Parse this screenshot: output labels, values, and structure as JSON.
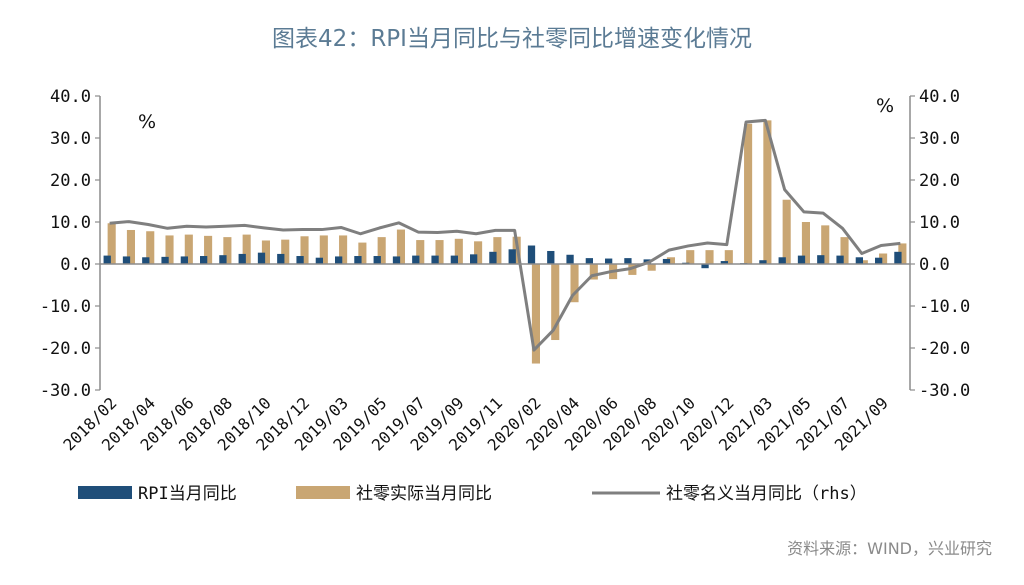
{
  "title": "图表42：RPI当月同比与社零同比增速变化情况",
  "source": "资料来源：WIND，兴业研究",
  "colors": {
    "rpi": "#1f4e79",
    "retail_real": "#c9a673",
    "retail_nominal": "#7f7f7f",
    "title": "#5b7b94",
    "axis": "#8c8c8c"
  },
  "chart_data": {
    "type": "bar",
    "left_axis": {
      "unit": "%",
      "ylim": [
        -30,
        40
      ],
      "ticks": [
        "40.0",
        "30.0",
        "20.0",
        "10.0",
        "0.0",
        "-10.0",
        "-20.0",
        "-30.0"
      ]
    },
    "right_axis": {
      "unit": "%",
      "ylim": [
        -30,
        40
      ],
      "ticks": [
        "40.0",
        "30.0",
        "20.0",
        "10.0",
        "0.0",
        "-10.0",
        "-20.0",
        "-30.0"
      ]
    },
    "x_tick_labels": [
      "2018/02",
      "2018/04",
      "2018/06",
      "2018/08",
      "2018/10",
      "2018/12",
      "2019/03",
      "2019/05",
      "2019/07",
      "2019/09",
      "2019/11",
      "2020/02",
      "2020/04",
      "2020/06",
      "2020/08",
      "2020/10",
      "2020/12",
      "2021/03",
      "2021/05",
      "2021/07",
      "2021/09"
    ],
    "x": [
      "2018/02",
      "2018/03",
      "2018/04",
      "2018/05",
      "2018/06",
      "2018/07",
      "2018/08",
      "2018/09",
      "2018/10",
      "2018/11",
      "2018/12",
      "2019/02",
      "2019/03",
      "2019/04",
      "2019/05",
      "2019/06",
      "2019/07",
      "2019/08",
      "2019/09",
      "2019/10",
      "2019/11",
      "2019/12",
      "2020/02",
      "2020/03",
      "2020/04",
      "2020/05",
      "2020/06",
      "2020/07",
      "2020/08",
      "2020/09",
      "2020/10",
      "2020/11",
      "2020/12",
      "2021/02",
      "2021/03",
      "2021/04",
      "2021/05",
      "2021/06",
      "2021/07",
      "2021/08",
      "2021/09",
      "2021/10"
    ],
    "legend": {
      "position": "bottom",
      "entries": [
        "RPI当月同比",
        "社零实际当月同比",
        "社零名义当月同比（rhs）"
      ]
    },
    "series": [
      {
        "name": "RPI当月同比",
        "type": "bar",
        "values": [
          2.0,
          1.8,
          1.6,
          1.7,
          1.8,
          1.9,
          2.1,
          2.4,
          2.7,
          2.4,
          1.9,
          1.5,
          1.8,
          1.9,
          1.9,
          1.8,
          2.0,
          2.0,
          2.0,
          2.3,
          2.9,
          3.5,
          4.4,
          3.1,
          2.2,
          1.4,
          1.3,
          1.4,
          1.1,
          1.2,
          0.3,
          -1.0,
          0.7,
          0.2,
          0.9,
          1.6,
          2.0,
          2.1,
          2.0,
          1.6,
          1.5,
          2.9
        ]
      },
      {
        "name": "社零实际当月同比",
        "type": "bar",
        "values": [
          9.7,
          8.1,
          7.8,
          6.8,
          7.0,
          6.7,
          6.4,
          7.0,
          5.6,
          5.8,
          6.6,
          6.8,
          6.8,
          5.1,
          6.4,
          8.2,
          5.7,
          5.7,
          6.0,
          5.4,
          6.4,
          6.5,
          -23.7,
          -18.1,
          -9.1,
          -3.7,
          -3.6,
          -2.6,
          -1.6,
          1.6,
          3.3,
          3.3,
          3.3,
          33.4,
          34.2,
          15.3,
          10.0,
          9.2,
          6.4,
          0.9,
          2.5,
          4.9
        ]
      },
      {
        "name": "社零名义当月同比（rhs）",
        "type": "line",
        "values": [
          9.7,
          10.1,
          9.4,
          8.5,
          9.0,
          8.8,
          9.0,
          9.2,
          8.6,
          8.1,
          8.2,
          8.2,
          8.7,
          7.2,
          8.6,
          9.8,
          7.6,
          7.5,
          7.8,
          7.2,
          8.0,
          8.0,
          -20.5,
          -15.8,
          -7.5,
          -2.8,
          -1.8,
          -1.1,
          0.5,
          3.3,
          4.3,
          5.0,
          4.6,
          33.8,
          34.2,
          17.7,
          12.4,
          12.1,
          8.5,
          2.5,
          4.4,
          4.9
        ]
      }
    ]
  }
}
